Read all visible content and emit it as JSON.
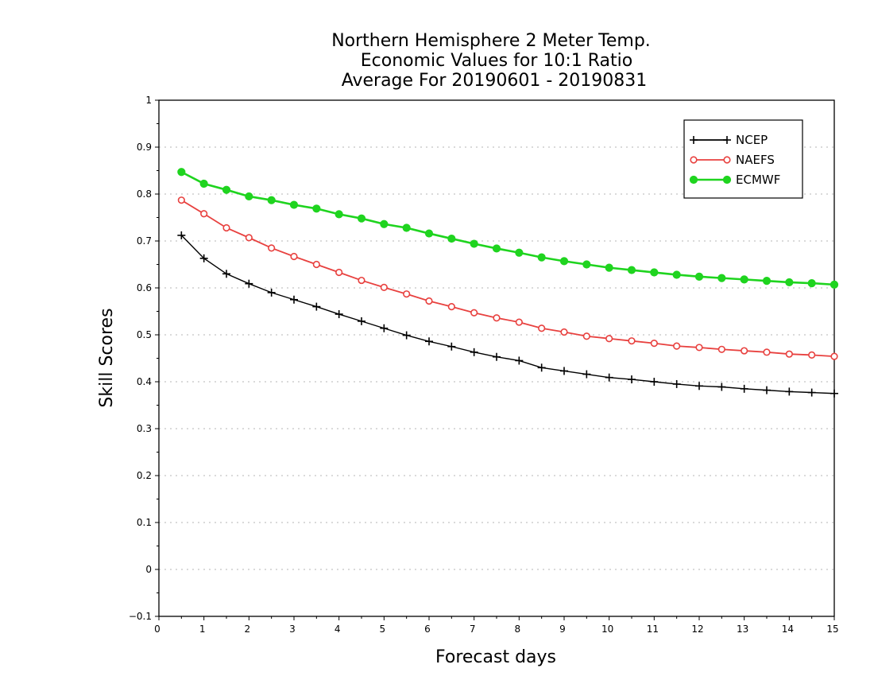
{
  "chart_data": {
    "type": "line",
    "title": [
      "Northern Hemisphere 2 Meter Temp.",
      "Economic Values for 10:1 Ratio",
      "Average For 20190601 - 20190831"
    ],
    "xlabel": "Forecast days",
    "ylabel": "Skill Scores",
    "xlim": [
      0,
      15
    ],
    "ylim": [
      -0.1,
      1
    ],
    "xticks": [
      0,
      1,
      2,
      3,
      4,
      5,
      6,
      7,
      8,
      9,
      10,
      11,
      12,
      13,
      14,
      15
    ],
    "xtick_labels": [
      "0",
      "1",
      "2",
      "3",
      "4",
      "5",
      "6",
      "7",
      "8",
      "9",
      "10",
      "11",
      "12",
      "13",
      "14",
      "15"
    ],
    "yticks": [
      -0.1,
      0,
      0.1,
      0.2,
      0.3,
      0.4,
      0.5,
      0.6,
      0.7,
      0.8,
      0.9,
      1
    ],
    "ytick_labels": [
      "−0.1",
      "0",
      "0.1",
      "0.2",
      "0.3",
      "0.4",
      "0.5",
      "0.6",
      "0.7",
      "0.8",
      "0.9",
      "1"
    ],
    "grid": "horizontal dotted",
    "legend_position": "top-right",
    "x": [
      0.5,
      1.0,
      1.5,
      2.0,
      2.5,
      3.0,
      3.5,
      4.0,
      4.5,
      5.0,
      5.5,
      6.0,
      6.5,
      7.0,
      7.5,
      8.0,
      8.5,
      9.0,
      9.5,
      10.0,
      10.5,
      11.0,
      11.5,
      12.0,
      12.5,
      13.0,
      13.5,
      14.0,
      14.5,
      15.0
    ],
    "series": [
      {
        "name": "NCEP",
        "color": "#000000",
        "marker": "plus",
        "values": [
          0.712,
          0.663,
          0.63,
          0.609,
          0.59,
          0.575,
          0.56,
          0.544,
          0.529,
          0.514,
          0.499,
          0.486,
          0.475,
          0.463,
          0.453,
          0.445,
          0.43,
          0.423,
          0.416,
          0.409,
          0.405,
          0.4,
          0.395,
          0.391,
          0.389,
          0.385,
          0.382,
          0.379,
          0.377,
          0.375
        ]
      },
      {
        "name": "NAEFS",
        "color": "#e8413f",
        "marker": "open-circle",
        "values": [
          0.787,
          0.758,
          0.728,
          0.707,
          0.685,
          0.667,
          0.65,
          0.633,
          0.616,
          0.601,
          0.587,
          0.572,
          0.56,
          0.547,
          0.536,
          0.527,
          0.514,
          0.506,
          0.497,
          0.492,
          0.487,
          0.482,
          0.476,
          0.473,
          0.469,
          0.466,
          0.463,
          0.459,
          0.457,
          0.454
        ]
      },
      {
        "name": "ECMWF",
        "color": "#1fd41f",
        "marker": "filled-circle",
        "values": [
          0.847,
          0.822,
          0.809,
          0.795,
          0.787,
          0.777,
          0.769,
          0.757,
          0.748,
          0.736,
          0.728,
          0.716,
          0.705,
          0.694,
          0.684,
          0.675,
          0.665,
          0.657,
          0.65,
          0.643,
          0.638,
          0.633,
          0.628,
          0.624,
          0.621,
          0.618,
          0.615,
          0.612,
          0.61,
          0.607
        ]
      }
    ]
  }
}
